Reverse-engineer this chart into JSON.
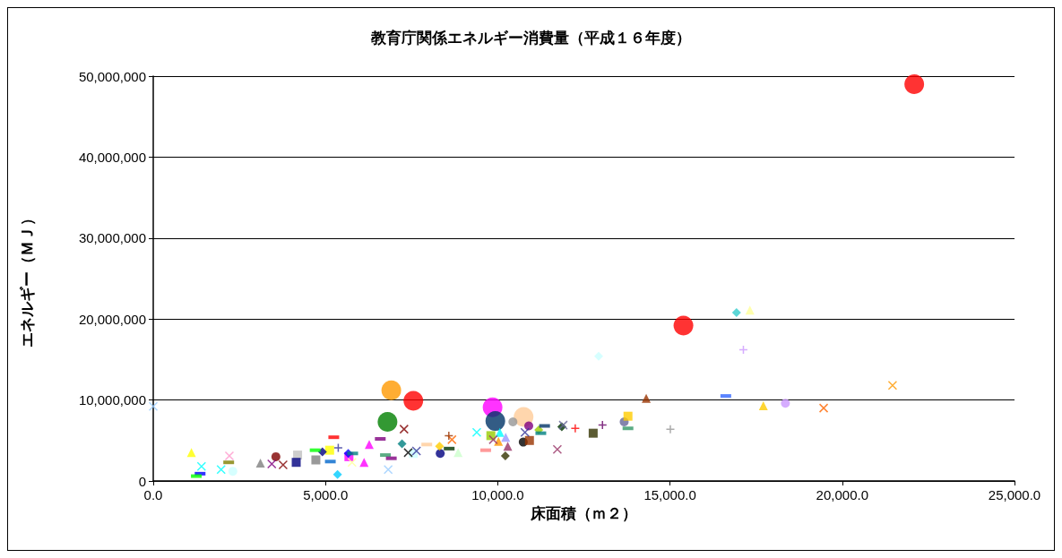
{
  "chart_data": {
    "type": "scatter",
    "title": "教育庁関係エネルギー消費量（平成１６年度）",
    "xlabel": "床面積（ｍ２）",
    "ylabel": "エネルギー（ＭＪ）",
    "xlim": [
      0,
      25000
    ],
    "xticks": [
      {
        "value": 0,
        "label": "0.0"
      },
      {
        "value": 5000,
        "label": "5,000.0"
      },
      {
        "value": 10000,
        "label": "10,000.0"
      },
      {
        "value": 15000,
        "label": "15,000.0"
      },
      {
        "value": 20000,
        "label": "20,000.0"
      },
      {
        "value": 25000,
        "label": "25,000.0"
      }
    ],
    "ylim": [
      0,
      50000000
    ],
    "yticks": [
      0,
      {
        "value": 10000000,
        "label": "10,000,000"
      },
      {
        "value": 20000000,
        "label": "20,000,000"
      },
      {
        "value": 30000000,
        "label": "30,000,000"
      },
      {
        "value": 40000000,
        "label": "40,000,000"
      },
      {
        "value": 50000000,
        "label": "50,000,000"
      }
    ],
    "grid": "y",
    "series": [
      {
        "type": "bubble",
        "marker": "circle",
        "x": [
          6910,
          6800,
          7550,
          9850,
          9930,
          10750,
          15390,
          22090
        ],
        "values": [
          11200000,
          7300000,
          9900000,
          9100000,
          7400000,
          7900000,
          19200000,
          49000000
        ],
        "sizes": [
          1,
          1,
          1,
          1,
          1,
          1,
          1,
          1
        ],
        "colors": [
          "#ff9900",
          "#008000",
          "#ff0000",
          "#ff00ff",
          "#003366",
          "#ffcc99",
          "#ff0000",
          "#ff0000"
        ]
      },
      {
        "marker": "circle",
        "x": [
          2310,
          3560,
          8330,
          10440,
          10900,
          10740,
          18350,
          13670
        ],
        "values": [
          1200000,
          3000000,
          3400000,
          7300000,
          6800000,
          4800000,
          9600000,
          7300000
        ],
        "colors": [
          "#ccffff",
          "#800000",
          "#000080",
          "#969696",
          "#800080",
          "#000000",
          "#cc99ff",
          "#666699"
        ]
      },
      {
        "marker": "square",
        "x": [
          4190,
          4150,
          4720,
          5120,
          5680,
          7550,
          9800,
          10920,
          12770,
          13780
        ],
        "values": [
          3200000,
          2300000,
          2600000,
          3800000,
          3000000,
          3400000,
          5600000,
          5000000,
          5900000,
          8000000
        ],
        "colors": [
          "#c0c0c0",
          "#000080",
          "#808080",
          "#ffff00",
          "#ff00ff",
          "#ccffff",
          "#99cc00",
          "#993300",
          "#333300",
          "#ffcc00"
        ]
      },
      {
        "marker": "triangle",
        "x": [
          1108,
          3110,
          6270,
          6120,
          8850,
          10060,
          10020,
          10230,
          10290,
          14310,
          17710,
          17320
        ],
        "values": [
          3500000,
          2200000,
          4500000,
          2300000,
          3500000,
          6000000,
          4900000,
          5400000,
          4300000,
          10200000,
          9300000,
          21100000
        ],
        "colors": [
          "#ffff00",
          "#808080",
          "#ff00ff",
          "#ff00ff",
          "#ccffcc",
          "#00ffff",
          "#ff9900",
          "#9999ff",
          "#993366",
          "#993300",
          "#ffcc00",
          "#ffff99"
        ]
      },
      {
        "marker": "diamond",
        "x": [
          4910,
          5660,
          5350,
          7220,
          8310,
          10220,
          11190,
          11860,
          16930,
          12930
        ],
        "values": [
          3600000,
          3400000,
          800000,
          4600000,
          4300000,
          3100000,
          6300000,
          6700000,
          20800000,
          15400000
        ],
        "colors": [
          "#000080",
          "#0000ff",
          "#00ccff",
          "#008080",
          "#ffcc00",
          "#333300",
          "#99cc00",
          "#003300",
          "#33cccc",
          "#ccffff"
        ]
      },
      {
        "marker": "cross",
        "x": [
          0,
          1400,
          1970,
          3770,
          7400,
          7640,
          8670,
          9870,
          11900,
          11730,
          21460
        ],
        "values": [
          9200000,
          1800000,
          1400000,
          2000000,
          3500000,
          3700000,
          5100000,
          5100000,
          6900000,
          3900000,
          11800000
        ],
        "colors": [
          "#99ccff",
          "#00ffff",
          "#00ffff",
          "#800000",
          "#000000",
          "#333399",
          "#ff6600",
          "#993366",
          "#666699",
          "#993366",
          "#ff9900"
        ]
      },
      {
        "marker": "plus",
        "x": [
          5370,
          8580,
          12250,
          13040,
          17130,
          15010
        ],
        "values": [
          4100000,
          5600000,
          6500000,
          6900000,
          16200000,
          6400000
        ],
        "colors": [
          "#333399",
          "#993300",
          "#ff0000",
          "#660066",
          "#cc99ff",
          "#969696"
        ]
      },
      {
        "marker": "cross",
        "x": [
          2210,
          3440,
          5770,
          7280,
          6820,
          9390,
          10790,
          19460
        ],
        "values": [
          3100000,
          2100000,
          2300000,
          6400000,
          1400000,
          6000000,
          6000000,
          9000000
        ],
        "colors": [
          "#ff99cc",
          "#800080",
          "#ffff99",
          "#800000",
          "#99ccff",
          "#00ffff",
          "#333399",
          "#ff6600"
        ]
      },
      {
        "x": [
          1360,
          1250,
          2190,
          4700,
          5240,
          5140,
          5790,
          6590,
          6740,
          6910,
          7940,
          8590,
          9650,
          11250,
          11360,
          16620,
          13780
        ],
        "values": [
          900000,
          600000,
          2300000,
          3800000,
          5400000,
          2400000,
          3400000,
          5200000,
          3200000,
          2800000,
          4500000,
          4000000,
          3800000,
          5900000,
          6800000,
          10500000,
          6500000
        ],
        "colors": [
          "#0000ff",
          "#00ff00",
          "#808000",
          "#00ff00",
          "#ff0000",
          "#0066cc",
          "#008080",
          "#800080",
          "#339966",
          "#800080",
          "#ffcc99",
          "#003300",
          "#ff8080",
          "#008080",
          "#003366",
          "#3366ff",
          "#339966"
        ]
      }
    ]
  }
}
